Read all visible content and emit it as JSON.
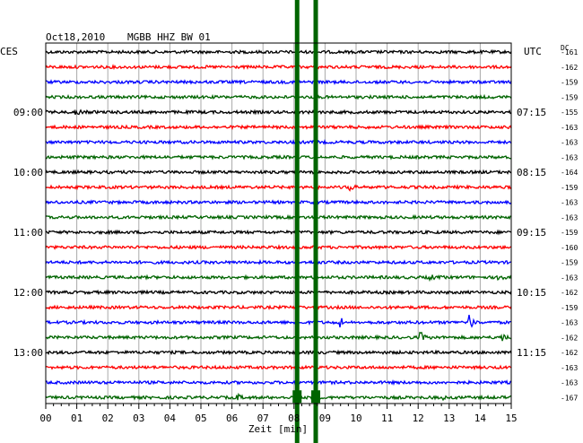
{
  "header": {
    "date": "Oct18,2010",
    "station": "MGBB HHZ BW 01",
    "left_timezone": "CES",
    "right_timezone": "UTC",
    "dc_header": "DC"
  },
  "chart_data": {
    "type": "line",
    "xlabel": "Zeit [min]",
    "xlim": [
      0,
      15
    ],
    "x_ticks": [
      "00",
      "01",
      "02",
      "03",
      "04",
      "05",
      "06",
      "07",
      "08",
      "09",
      "10",
      "11",
      "12",
      "13",
      "14",
      "15"
    ],
    "trace_count": 24,
    "trace_colors": [
      "#000000",
      "#ff0000",
      "#0000ff",
      "#006400"
    ],
    "left_hour_labels": [
      {
        "trace": 4,
        "label": "09:00"
      },
      {
        "trace": 8,
        "label": "10:00"
      },
      {
        "trace": 12,
        "label": "11:00"
      },
      {
        "trace": 16,
        "label": "12:00"
      },
      {
        "trace": 20,
        "label": "13:00"
      }
    ],
    "right_hour_labels": [
      {
        "trace": 4,
        "label": "07:15"
      },
      {
        "trace": 8,
        "label": "08:15"
      },
      {
        "trace": 12,
        "label": "09:15"
      },
      {
        "trace": 16,
        "label": "10:15"
      },
      {
        "trace": 20,
        "label": "11:15"
      }
    ],
    "dc_offsets": [
      "-161",
      "-162",
      "-159",
      "-159",
      "-155",
      "-163",
      "-163",
      "-163",
      "-164",
      "-159",
      "-163",
      "-163",
      "-159",
      "-160",
      "-159",
      "-163",
      "-162",
      "-159",
      "-163",
      "-162",
      "-162",
      "-163",
      "-163",
      "-167"
    ],
    "events": [
      {
        "trace": 4,
        "minute": 1.0,
        "amp": 0.35
      },
      {
        "trace": 9,
        "minute": 9.8,
        "amp": 0.6
      },
      {
        "trace": 15,
        "minute": 12.4,
        "amp": 0.35
      },
      {
        "trace": 15,
        "minute": 14.6,
        "amp": 0.5
      },
      {
        "trace": 18,
        "minute": 9.5,
        "amp": 0.55
      },
      {
        "trace": 18,
        "minute": 13.65,
        "amp": 1.2
      },
      {
        "trace": 19,
        "minute": 12.1,
        "amp": 0.6
      },
      {
        "trace": 19,
        "minute": 14.7,
        "amp": 0.7
      },
      {
        "trace": 23,
        "minute": 6.2,
        "amp": 0.35
      },
      {
        "trace": 23,
        "minute": 12.8,
        "amp": 0.35
      }
    ],
    "spikes": [
      {
        "minute": 8.1,
        "color": "#006400"
      },
      {
        "minute": 8.7,
        "color": "#006400"
      }
    ]
  }
}
